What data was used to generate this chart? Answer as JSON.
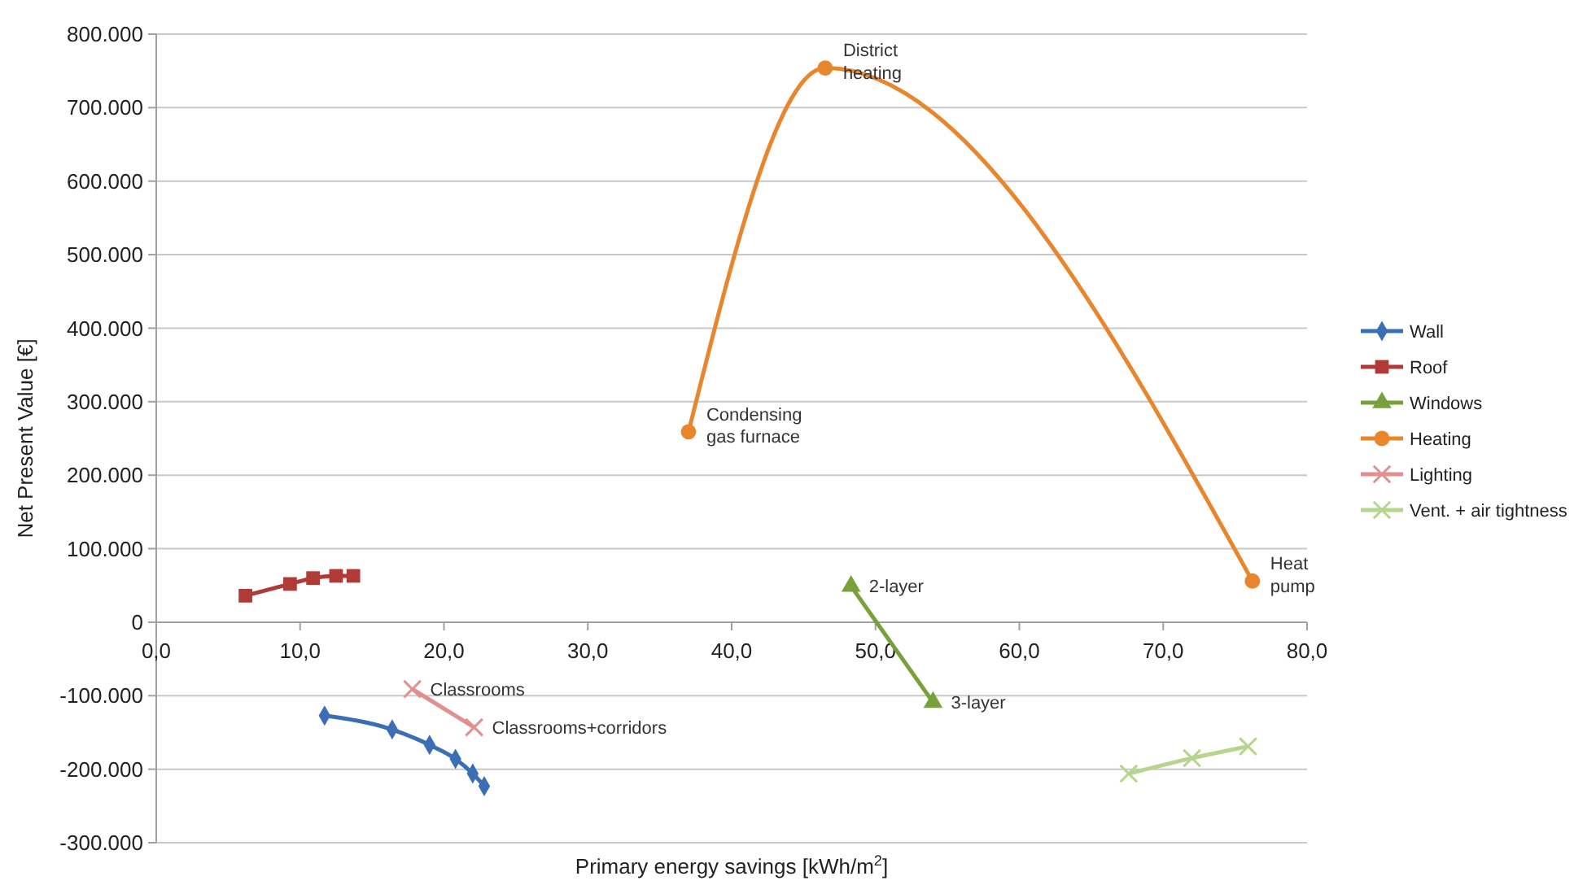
{
  "chart_data": {
    "type": "line",
    "xlabel": "Primary energy savings [kWh/m$^{2}$]",
    "ylabel": "Net Present Value [€]",
    "xlim": [
      0,
      80
    ],
    "xticks": [
      {
        "value": 0,
        "label": "0,0"
      },
      {
        "value": 10,
        "label": "10,0"
      },
      {
        "value": 20,
        "label": "20,0"
      },
      {
        "value": 30,
        "label": "30,0"
      },
      {
        "value": 40,
        "label": "40,0"
      },
      {
        "value": 50,
        "label": "50,0"
      },
      {
        "value": 60,
        "label": "60,0"
      },
      {
        "value": 70,
        "label": "70,0"
      },
      {
        "value": 80,
        "label": "80,0"
      }
    ],
    "ylim": [
      -300000,
      800000
    ],
    "yticks": [
      {
        "value": -300000,
        "label": "-300.000"
      },
      {
        "value": -200000,
        "label": "-200.000"
      },
      {
        "value": -100000,
        "label": "-100.000"
      },
      {
        "value": 0,
        "label": "0"
      },
      {
        "value": 100000,
        "label": "100.000"
      },
      {
        "value": 200000,
        "label": "200.000"
      },
      {
        "value": 300000,
        "label": "300.000"
      },
      {
        "value": 400000,
        "label": "400.000"
      },
      {
        "value": 500000,
        "label": "500.000"
      },
      {
        "value": 600000,
        "label": "600.000"
      },
      {
        "value": 700000,
        "label": "700.000"
      },
      {
        "value": 800000,
        "label": "800.000"
      }
    ],
    "grid": "y",
    "legend": "right",
    "series": [
      {
        "name": "Wall",
        "color": "#3a6fb5",
        "marker": "diamond",
        "x": [
          11.7,
          16.4,
          19.0,
          20.8,
          22.0,
          22.8
        ],
        "values": [
          -127000,
          -146000,
          -167000,
          -186000,
          -206000,
          -223000
        ]
      },
      {
        "name": "Roof",
        "color": "#b03a35",
        "marker": "square",
        "x": [
          6.2,
          9.3,
          10.9,
          12.5,
          13.7
        ],
        "values": [
          36000,
          52000,
          60000,
          63000,
          63000
        ]
      },
      {
        "name": "Windows",
        "color": "#77a13a",
        "marker": "triangle",
        "x": [
          48.3,
          54.0
        ],
        "values": [
          49000,
          -109000
        ]
      },
      {
        "name": "Heating",
        "color": "#e8862e",
        "marker": "circle",
        "x": [
          37.0,
          46.5,
          76.2
        ],
        "values": [
          259000,
          754000,
          56000
        ]
      },
      {
        "name": "Lighting",
        "color": "#e0908e",
        "marker": "cross",
        "x": [
          17.8,
          22.1
        ],
        "values": [
          -91000,
          -143000
        ]
      },
      {
        "name": "Vent. + air tightness",
        "color": "#b5d68c",
        "marker": "cross",
        "x": [
          67.6,
          72.0,
          75.9
        ],
        "values": [
          -206000,
          -185000,
          -169000
        ]
      }
    ],
    "annotations": [
      {
        "text": "Condensing\ngas furnace",
        "x": 37.0,
        "y": 259000
      },
      {
        "text": "District\nheating",
        "x": 46.5,
        "y": 754000
      },
      {
        "text": "Heat\npump",
        "x": 76.2,
        "y": 56000
      },
      {
        "text": "2-layer",
        "x": 48.3,
        "y": 49000
      },
      {
        "text": "3-layer",
        "x": 54.0,
        "y": -109000
      },
      {
        "text": "Classrooms",
        "x": 17.8,
        "y": -91000
      },
      {
        "text": "Classrooms+corridors",
        "x": 22.1,
        "y": -143000
      }
    ]
  }
}
